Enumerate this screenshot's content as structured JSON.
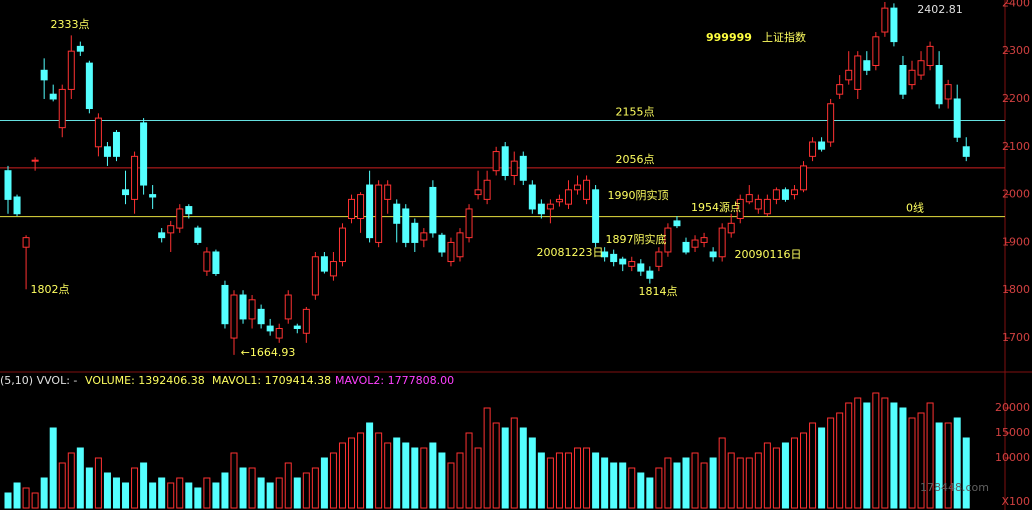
{
  "chart_data": [
    {
      "type": "candlestick",
      "code": "999999",
      "title": "上证指数",
      "up_color": "#ff3232",
      "down_color": "#54ffff",
      "ylim": [
        1629,
        2407
      ],
      "yticks": [
        1700,
        1800,
        1900,
        2000,
        2100,
        2200,
        2300,
        2400
      ],
      "ohlc": [
        [
          2050,
          2060,
          1960,
          1990
        ],
        [
          1995,
          2000,
          1955,
          1960
        ],
        [
          1890,
          1915,
          1802,
          1910
        ],
        [
          2070,
          2078,
          2050,
          2072
        ],
        [
          2260,
          2285,
          2200,
          2240
        ],
        [
          2210,
          2230,
          2195,
          2200
        ],
        [
          2140,
          2230,
          2120,
          2220
        ],
        [
          2220,
          2333,
          2200,
          2300
        ],
        [
          2310,
          2320,
          2290,
          2300
        ],
        [
          2275,
          2280,
          2170,
          2180
        ],
        [
          2100,
          2170,
          2080,
          2160
        ],
        [
          2100,
          2110,
          2060,
          2080
        ],
        [
          2130,
          2135,
          2070,
          2080
        ],
        [
          2010,
          2050,
          1980,
          2000
        ],
        [
          1990,
          2090,
          1960,
          2080
        ],
        [
          2150,
          2160,
          2000,
          2020
        ],
        [
          2000,
          2020,
          1970,
          1995
        ],
        [
          1920,
          1930,
          1900,
          1910
        ],
        [
          1920,
          1945,
          1880,
          1935
        ],
        [
          1930,
          1980,
          1920,
          1970
        ],
        [
          1975,
          1980,
          1950,
          1960
        ],
        [
          1930,
          1935,
          1895,
          1900
        ],
        [
          1840,
          1890,
          1830,
          1880
        ],
        [
          1880,
          1885,
          1830,
          1835
        ],
        [
          1810,
          1820,
          1720,
          1730
        ],
        [
          1700,
          1800,
          1664.93,
          1790
        ],
        [
          1790,
          1800,
          1730,
          1740
        ],
        [
          1740,
          1790,
          1720,
          1780
        ],
        [
          1760,
          1770,
          1720,
          1730
        ],
        [
          1725,
          1740,
          1705,
          1715
        ],
        [
          1700,
          1730,
          1690,
          1720
        ],
        [
          1740,
          1800,
          1730,
          1790
        ],
        [
          1725,
          1730,
          1710,
          1720
        ],
        [
          1710,
          1765,
          1690,
          1760
        ],
        [
          1790,
          1880,
          1780,
          1870
        ],
        [
          1870,
          1880,
          1835,
          1840
        ],
        [
          1830,
          1880,
          1820,
          1860
        ],
        [
          1860,
          1940,
          1850,
          1930
        ],
        [
          1950,
          2000,
          1940,
          1990
        ],
        [
          1950,
          2005,
          1920,
          2000
        ],
        [
          2020,
          2050,
          1900,
          1910
        ],
        [
          1900,
          2030,
          1890,
          2020
        ],
        [
          1990,
          2030,
          1960,
          2020
        ],
        [
          1980,
          1990,
          1900,
          1940
        ],
        [
          1970,
          1980,
          1890,
          1900
        ],
        [
          1940,
          1950,
          1880,
          1900
        ],
        [
          1905,
          1930,
          1890,
          1920
        ],
        [
          2015,
          2030,
          1910,
          1920
        ],
        [
          1915,
          1920,
          1870,
          1880
        ],
        [
          1860,
          1910,
          1850,
          1900
        ],
        [
          1870,
          1930,
          1860,
          1920
        ],
        [
          1910,
          1980,
          1900,
          1970
        ],
        [
          2000,
          2050,
          1990,
          2010
        ],
        [
          1990,
          2050,
          1980,
          2030
        ],
        [
          2050,
          2100,
          2040,
          2090
        ],
        [
          2100,
          2110,
          2030,
          2040
        ],
        [
          2040,
          2090,
          2020,
          2070
        ],
        [
          2080,
          2090,
          2020,
          2030
        ],
        [
          2020,
          2030,
          1960,
          1970
        ],
        [
          1980,
          1990,
          1950,
          1960
        ],
        [
          1970,
          1990,
          1940,
          1980
        ],
        [
          1985,
          2000,
          1975,
          1990
        ],
        [
          1980,
          2030,
          1970,
          2010
        ],
        [
          2010,
          2040,
          2000,
          2020
        ],
        [
          1990,
          2040,
          1980,
          2030
        ],
        [
          2010,
          2020,
          1890,
          1900
        ],
        [
          1880,
          1890,
          1860,
          1870
        ],
        [
          1875,
          1885,
          1850,
          1860
        ],
        [
          1865,
          1870,
          1840,
          1855
        ],
        [
          1850,
          1870,
          1840,
          1860
        ],
        [
          1855,
          1865,
          1830,
          1840
        ],
        [
          1840,
          1850,
          1814,
          1825
        ],
        [
          1850,
          1890,
          1840,
          1880
        ],
        [
          1880,
          1940,
          1870,
          1930
        ],
        [
          1945,
          1955,
          1930,
          1935
        ],
        [
          1900,
          1910,
          1875,
          1880
        ],
        [
          1890,
          1915,
          1880,
          1905
        ],
        [
          1900,
          1920,
          1890,
          1910
        ],
        [
          1880,
          1890,
          1860,
          1870
        ],
        [
          1870,
          1940,
          1860,
          1930
        ],
        [
          1920,
          1960,
          1910,
          1940
        ],
        [
          1950,
          2000,
          1940,
          1990
        ],
        [
          1985,
          2020,
          1980,
          2000
        ],
        [
          1970,
          2000,
          1960,
          1990
        ],
        [
          1960,
          2000,
          1955,
          1990
        ],
        [
          1990,
          2015,
          1980,
          2010
        ],
        [
          2010,
          2015,
          1985,
          1990
        ],
        [
          2000,
          2020,
          1990,
          2010
        ],
        [
          2010,
          2070,
          2005,
          2060
        ],
        [
          2080,
          2120,
          2070,
          2110
        ],
        [
          2110,
          2120,
          2090,
          2095
        ],
        [
          2110,
          2200,
          2100,
          2190
        ],
        [
          2210,
          2250,
          2200,
          2230
        ],
        [
          2240,
          2300,
          2230,
          2260
        ],
        [
          2220,
          2300,
          2200,
          2290
        ],
        [
          2280,
          2300,
          2250,
          2260
        ],
        [
          2270,
          2340,
          2260,
          2330
        ],
        [
          2340,
          2402.81,
          2330,
          2390
        ],
        [
          2390,
          2400,
          2310,
          2320
        ],
        [
          2270,
          2290,
          2200,
          2210
        ],
        [
          2230,
          2280,
          2220,
          2260
        ],
        [
          2250,
          2300,
          2240,
          2280
        ],
        [
          2270,
          2320,
          2260,
          2310
        ],
        [
          2270,
          2300,
          2180,
          2190
        ],
        [
          2200,
          2240,
          2180,
          2230
        ],
        [
          2200,
          2230,
          2110,
          2120
        ],
        [
          2100,
          2120,
          2070,
          2080
        ]
      ],
      "reference_lines": [
        {
          "value": 2155,
          "color": "#66e0e0",
          "label": "2155点"
        },
        {
          "value": 2056,
          "color": "#d02020",
          "label": "2056点"
        },
        {
          "value": 1954,
          "color": "#e8e040",
          "label": "0线"
        }
      ],
      "annotations": [
        "2333点",
        "1802点",
        "←1664.93",
        "1990阴实顶",
        "1897阴实底",
        "20081223日",
        "1814点",
        "1954源点",
        "20090116日",
        "2402.81"
      ]
    },
    {
      "type": "bar",
      "header": [
        "(5,10) VVOL: -",
        "VOLUME: 1392406.38",
        "MAVOL1: 1709414.38",
        "MAVOL2: 1777808.00"
      ],
      "unit_label": "X100",
      "watermark": "178448.com",
      "ylim": [
        0,
        26000
      ],
      "yticks": [
        10000,
        15000,
        20000
      ],
      "values": [
        3000,
        5000,
        4000,
        3000,
        6000,
        16000,
        9000,
        11000,
        12000,
        8000,
        10000,
        7000,
        6000,
        5000,
        8000,
        9000,
        5000,
        6000,
        5000,
        6000,
        5000,
        4000,
        6000,
        5000,
        7000,
        11000,
        8000,
        8000,
        6000,
        5000,
        6000,
        9000,
        6000,
        7000,
        8000,
        10000,
        11000,
        13000,
        14000,
        15000,
        17000,
        15000,
        13000,
        14000,
        13000,
        12000,
        12000,
        13000,
        11000,
        9000,
        11000,
        15000,
        12000,
        20000,
        17000,
        16000,
        18000,
        16000,
        14000,
        11000,
        10000,
        11000,
        11000,
        12000,
        12000,
        11000,
        10000,
        9000,
        9000,
        8000,
        7000,
        6000,
        8000,
        10000,
        9000,
        10000,
        11000,
        9000,
        10000,
        14000,
        11000,
        10000,
        10000,
        11000,
        13000,
        12000,
        13000,
        14000,
        15000,
        17000,
        16000,
        18000,
        19000,
        21000,
        22000,
        21000,
        23000,
        22000,
        21000,
        20000,
        18000,
        19000,
        21000,
        17000,
        17000,
        18000,
        14000
      ]
    }
  ]
}
